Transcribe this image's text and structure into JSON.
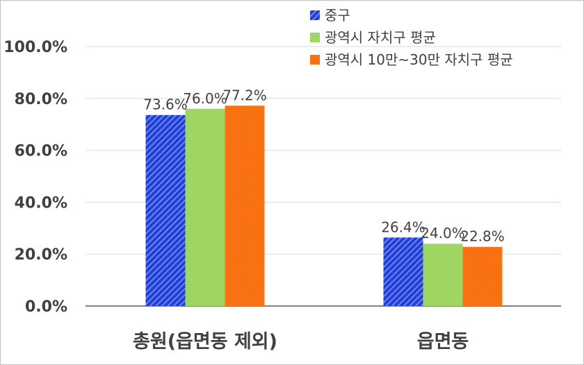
{
  "chart_data": {
    "type": "bar",
    "categories": [
      "총원(읍면동 제외)",
      "읍면동"
    ],
    "series": [
      {
        "name": "중구",
        "values": [
          73.6,
          26.4
        ],
        "color": "#1f3fd8",
        "pattern": "diagonal-stripes"
      },
      {
        "name": "광역시 자치구 평균",
        "values": [
          76.0,
          24.0
        ],
        "color": "#92d050",
        "pattern": "dots"
      },
      {
        "name": "광역시 10만~30만 자치구 평균",
        "values": [
          77.2,
          22.8
        ],
        "color": "#ff6600",
        "pattern": "dots"
      }
    ],
    "data_labels": [
      [
        "73.6%",
        "26.4%"
      ],
      [
        "76.0%",
        "24.0%"
      ],
      [
        "77.2%",
        "22.8%"
      ]
    ],
    "y_ticks": [
      "0.0%",
      "20.0%",
      "40.0%",
      "60.0%",
      "80.0%",
      "100.0%"
    ],
    "ylim": [
      0,
      100
    ],
    "grid": true,
    "legend": "top-right"
  }
}
